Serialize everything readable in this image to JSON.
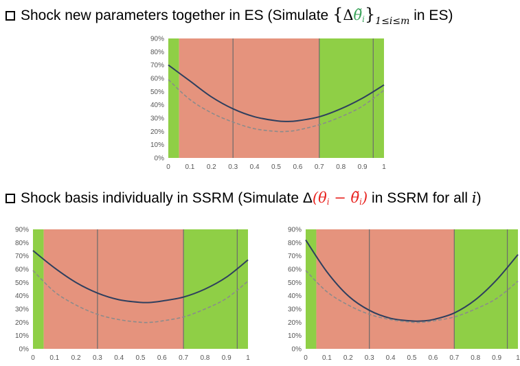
{
  "bullets": {
    "top": {
      "lead": "Shock new parameters together in ES (Simulate ",
      "brace_open": "{",
      "delta": "Δ",
      "theta": "θ̃",
      "theta_sub": "i",
      "brace_close": "}",
      "range_sub": "1≤i≤m",
      "tail": " in ES)"
    },
    "bottom": {
      "lead": "Shock basis individually in SSRM (Simulate Δ",
      "expr": "(θ",
      "expr_sub1": "i",
      "expr_mid": " − θ̃",
      "expr_sub2": "i",
      "expr_close": ")",
      "tail": " in SSRM for all ",
      "var": "i",
      "end": ")"
    }
  },
  "colors": {
    "green": "#8fcf46",
    "red": "#e5937d",
    "solid": "#2e3f5e",
    "dashed": "#8b8b8b",
    "vline": "#6b6b6b"
  },
  "chart_data": [
    {
      "type": "line",
      "name": "top",
      "xlim": [
        0,
        1
      ],
      "ylim": [
        0,
        0.9
      ],
      "xticks": [
        "0",
        "0.1",
        "0.2",
        "0.3",
        "0.4",
        "0.5",
        "0.6",
        "0.7",
        "0.8",
        "0.9",
        "1"
      ],
      "yticks": [
        "0%",
        "10%",
        "20%",
        "30%",
        "40%",
        "50%",
        "60%",
        "70%",
        "80%",
        "90%"
      ],
      "shaded_regions": [
        {
          "from": 0,
          "to": 0.05,
          "color": "green"
        },
        {
          "from": 0.05,
          "to": 0.7,
          "color": "red"
        },
        {
          "from": 0.7,
          "to": 1,
          "color": "green"
        }
      ],
      "vertical_lines": [
        0.3,
        0.7,
        0.95
      ],
      "series": [
        {
          "style": "solid",
          "x": [
            0,
            0.1,
            0.2,
            0.3,
            0.4,
            0.5,
            0.55,
            0.6,
            0.7,
            0.8,
            0.9,
            1
          ],
          "y": [
            0.7,
            0.58,
            0.46,
            0.37,
            0.31,
            0.28,
            0.275,
            0.28,
            0.31,
            0.37,
            0.45,
            0.55
          ]
        },
        {
          "style": "dashed",
          "x": [
            0,
            0.1,
            0.2,
            0.3,
            0.4,
            0.5,
            0.55,
            0.6,
            0.7,
            0.8,
            0.9,
            1
          ],
          "y": [
            0.59,
            0.44,
            0.34,
            0.27,
            0.22,
            0.2,
            0.2,
            0.21,
            0.25,
            0.31,
            0.39,
            0.51
          ]
        }
      ]
    },
    {
      "type": "line",
      "name": "bottom-left",
      "xlim": [
        0,
        1
      ],
      "ylim": [
        0,
        0.9
      ],
      "xticks": [
        "0",
        "0.1",
        "0.2",
        "0.3",
        "0.4",
        "0.5",
        "0.6",
        "0.7",
        "0.8",
        "0.9",
        "1"
      ],
      "yticks": [
        "0%",
        "10%",
        "20%",
        "30%",
        "40%",
        "50%",
        "60%",
        "70%",
        "80%",
        "90%"
      ],
      "shaded_regions": [
        {
          "from": 0,
          "to": 0.05,
          "color": "green"
        },
        {
          "from": 0.05,
          "to": 0.7,
          "color": "red"
        },
        {
          "from": 0.7,
          "to": 1,
          "color": "green"
        }
      ],
      "vertical_lines": [
        0.3,
        0.7,
        0.95
      ],
      "series": [
        {
          "style": "solid",
          "x": [
            0,
            0.1,
            0.2,
            0.3,
            0.4,
            0.5,
            0.55,
            0.6,
            0.7,
            0.8,
            0.9,
            1
          ],
          "y": [
            0.74,
            0.61,
            0.5,
            0.42,
            0.37,
            0.35,
            0.35,
            0.36,
            0.39,
            0.45,
            0.54,
            0.67
          ]
        },
        {
          "style": "dashed",
          "x": [
            0,
            0.1,
            0.2,
            0.3,
            0.4,
            0.5,
            0.55,
            0.6,
            0.7,
            0.8,
            0.9,
            1
          ],
          "y": [
            0.59,
            0.43,
            0.33,
            0.26,
            0.22,
            0.2,
            0.2,
            0.21,
            0.24,
            0.3,
            0.38,
            0.51
          ]
        }
      ]
    },
    {
      "type": "line",
      "name": "bottom-right",
      "xlim": [
        0,
        1
      ],
      "ylim": [
        0,
        0.9
      ],
      "xticks": [
        "0",
        "0.1",
        "0.2",
        "0.3",
        "0.4",
        "0.5",
        "0.6",
        "0.7",
        "0.8",
        "0.9",
        "1"
      ],
      "yticks": [
        "0%",
        "10%",
        "20%",
        "30%",
        "40%",
        "50%",
        "60%",
        "70%",
        "80%",
        "90%"
      ],
      "shaded_regions": [
        {
          "from": 0,
          "to": 0.05,
          "color": "green"
        },
        {
          "from": 0.05,
          "to": 0.7,
          "color": "red"
        },
        {
          "from": 0.7,
          "to": 1,
          "color": "green"
        }
      ],
      "vertical_lines": [
        0.3,
        0.7,
        0.95
      ],
      "series": [
        {
          "style": "solid",
          "x": [
            0,
            0.1,
            0.2,
            0.3,
            0.4,
            0.5,
            0.55,
            0.6,
            0.7,
            0.8,
            0.9,
            1
          ],
          "y": [
            0.82,
            0.58,
            0.4,
            0.29,
            0.23,
            0.21,
            0.21,
            0.22,
            0.27,
            0.37,
            0.52,
            0.71
          ]
        },
        {
          "style": "dashed",
          "x": [
            0,
            0.1,
            0.2,
            0.3,
            0.4,
            0.5,
            0.55,
            0.6,
            0.7,
            0.8,
            0.9,
            1
          ],
          "y": [
            0.59,
            0.43,
            0.33,
            0.26,
            0.22,
            0.2,
            0.2,
            0.21,
            0.24,
            0.3,
            0.38,
            0.51
          ]
        }
      ]
    }
  ]
}
